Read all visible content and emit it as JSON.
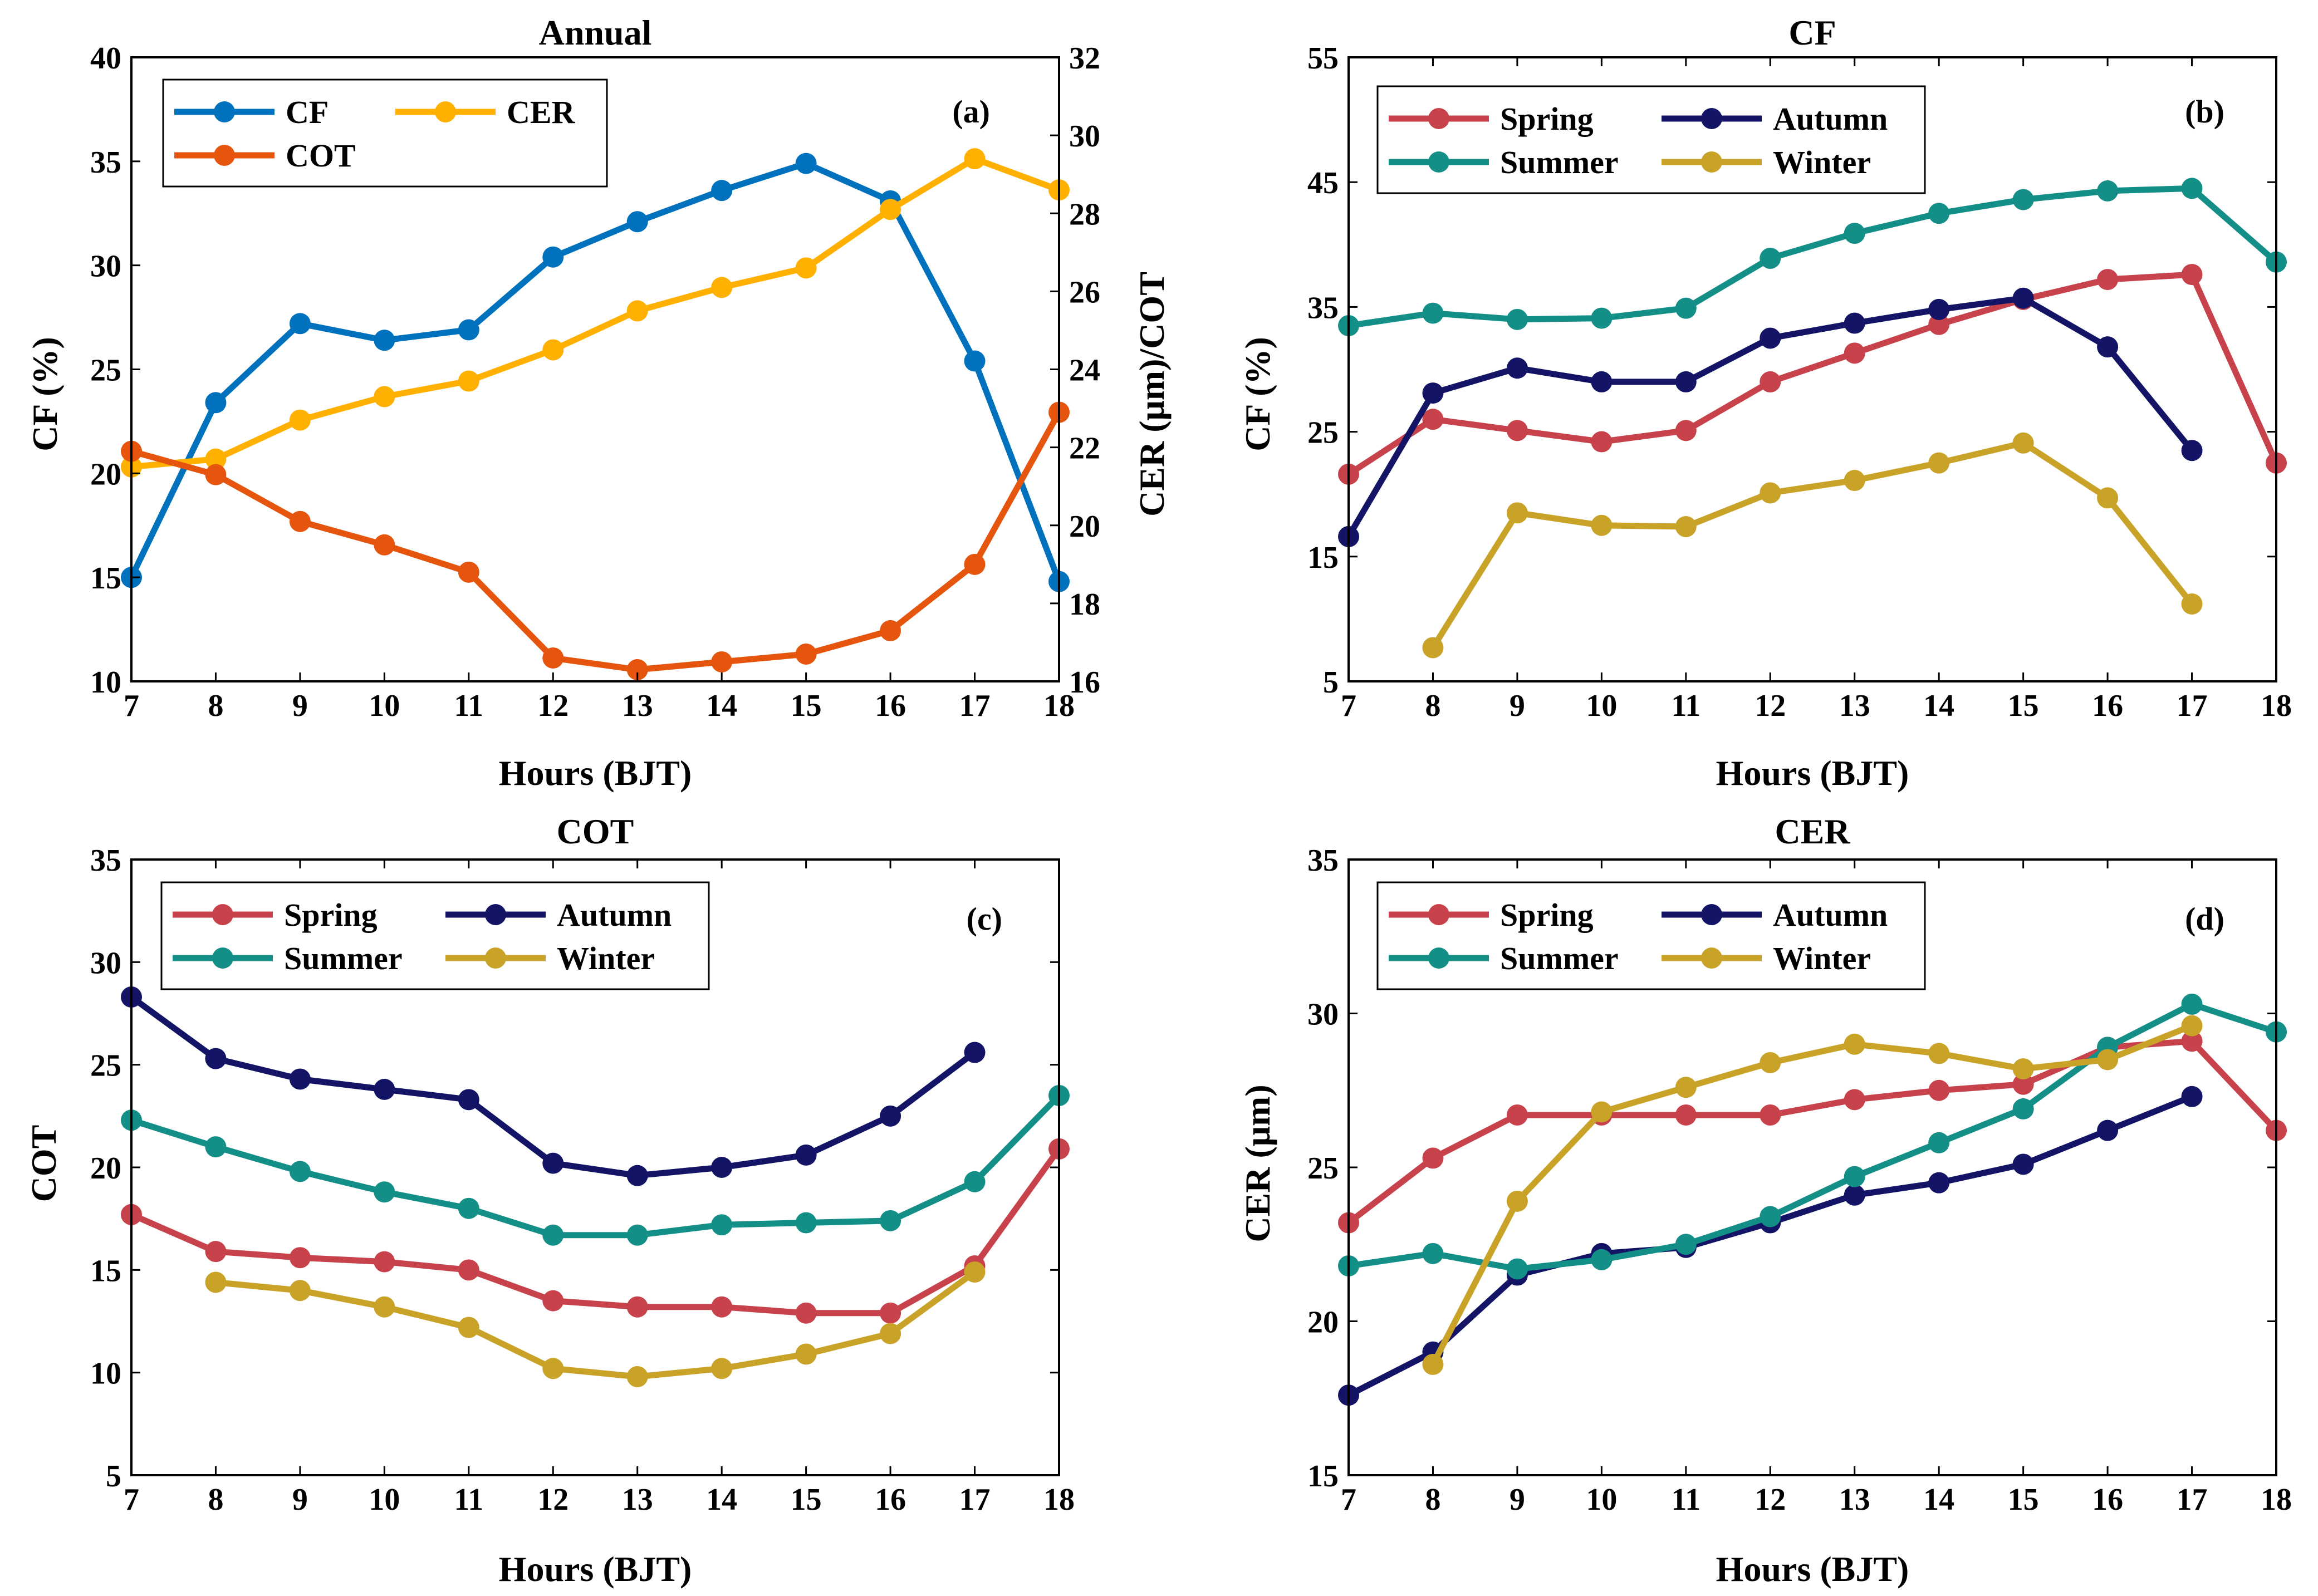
{
  "chart_data": [
    {
      "panel": "a",
      "type": "line",
      "title": "Annual",
      "annotation": "(a)",
      "xlabel": "Hours (BJT)",
      "ylabel": "CF (%)",
      "y2label": "CER (μm)/COT",
      "x": [
        7,
        8,
        9,
        10,
        11,
        12,
        13,
        14,
        15,
        16,
        17,
        18
      ],
      "xlim": [
        7,
        18
      ],
      "ylim": [
        10,
        40
      ],
      "y2lim": [
        16,
        32
      ],
      "yticks": [
        10,
        15,
        20,
        25,
        30,
        35,
        40
      ],
      "y2ticks": [
        16,
        18,
        20,
        22,
        24,
        26,
        28,
        30,
        32
      ],
      "legend_columns": 2,
      "series": [
        {
          "name": "CF",
          "axis": "left",
          "color": "#0072BD",
          "values": [
            15.0,
            23.4,
            27.2,
            26.4,
            26.9,
            30.4,
            32.1,
            33.6,
            34.9,
            33.1,
            25.4,
            14.8
          ]
        },
        {
          "name": "CER",
          "axis": "right",
          "color": "#FFB000",
          "values": [
            21.5,
            21.7,
            22.7,
            23.3,
            23.7,
            24.5,
            25.5,
            26.1,
            26.6,
            28.1,
            29.4,
            28.6
          ]
        },
        {
          "name": "COT",
          "axis": "right",
          "color": "#E6550D",
          "values": [
            21.9,
            21.3,
            20.1,
            19.5,
            18.8,
            16.6,
            16.3,
            16.5,
            16.7,
            17.3,
            19.0,
            22.9
          ]
        }
      ]
    },
    {
      "panel": "b",
      "type": "line",
      "title": "CF",
      "annotation": "(b)",
      "xlabel": "Hours (BJT)",
      "ylabel": "CF (%)",
      "x": [
        7,
        8,
        9,
        10,
        11,
        12,
        13,
        14,
        15,
        16,
        17,
        18
      ],
      "xlim": [
        7,
        18
      ],
      "ylim": [
        5,
        55
      ],
      "yticks": [
        5,
        15,
        25,
        35,
        45,
        55
      ],
      "legend_columns": 2,
      "series": [
        {
          "name": "Spring",
          "color": "#C8424B",
          "values": [
            21.6,
            26.0,
            25.1,
            24.2,
            25.1,
            29.0,
            31.3,
            33.6,
            35.6,
            37.2,
            37.6,
            22.5
          ]
        },
        {
          "name": "Autumn",
          "color": "#141466",
          "values": [
            16.6,
            28.1,
            30.1,
            29.0,
            29.0,
            32.5,
            33.7,
            34.8,
            35.7,
            31.8,
            23.5,
            null
          ]
        },
        {
          "name": "Summer",
          "color": "#138F87",
          "values": [
            33.5,
            34.5,
            34.0,
            34.1,
            34.9,
            38.9,
            40.9,
            42.5,
            43.6,
            44.3,
            44.5,
            38.6
          ]
        },
        {
          "name": "Winter",
          "color": "#C9A228",
          "values": [
            null,
            7.7,
            18.5,
            17.5,
            17.4,
            20.1,
            21.1,
            22.5,
            24.1,
            19.7,
            11.2,
            null
          ]
        }
      ]
    },
    {
      "panel": "c",
      "type": "line",
      "title": "COT",
      "annotation": "(c)",
      "xlabel": "Hours (BJT)",
      "ylabel": "COT",
      "x": [
        7,
        8,
        9,
        10,
        11,
        12,
        13,
        14,
        15,
        16,
        17,
        18
      ],
      "xlim": [
        7,
        18
      ],
      "ylim": [
        5,
        35
      ],
      "yticks": [
        5,
        10,
        15,
        20,
        25,
        30,
        35
      ],
      "legend_columns": 2,
      "series": [
        {
          "name": "Spring",
          "color": "#C8424B",
          "values": [
            17.7,
            15.9,
            15.6,
            15.4,
            15.0,
            13.5,
            13.2,
            13.2,
            12.9,
            12.9,
            15.2,
            20.9
          ]
        },
        {
          "name": "Autumn",
          "color": "#141466",
          "values": [
            28.3,
            25.3,
            24.3,
            23.8,
            23.3,
            20.2,
            19.6,
            20.0,
            20.6,
            22.5,
            25.6,
            null
          ]
        },
        {
          "name": "Summer",
          "color": "#138F87",
          "values": [
            22.3,
            21.0,
            19.8,
            18.8,
            18.0,
            16.7,
            16.7,
            17.2,
            17.3,
            17.4,
            19.3,
            23.5
          ]
        },
        {
          "name": "Winter",
          "color": "#C9A228",
          "values": [
            null,
            14.4,
            14.0,
            13.2,
            12.2,
            10.2,
            9.8,
            10.2,
            10.9,
            11.9,
            14.9,
            null
          ]
        }
      ]
    },
    {
      "panel": "d",
      "type": "line",
      "title": "CER",
      "annotation": "(d)",
      "xlabel": "Hours (BJT)",
      "ylabel": "CER (μm)",
      "x": [
        7,
        8,
        9,
        10,
        11,
        12,
        13,
        14,
        15,
        16,
        17,
        18
      ],
      "xlim": [
        7,
        18
      ],
      "ylim": [
        15,
        35
      ],
      "yticks": [
        15,
        20,
        25,
        30,
        35
      ],
      "legend_columns": 2,
      "series": [
        {
          "name": "Spring",
          "color": "#C8424B",
          "values": [
            23.2,
            25.3,
            26.7,
            26.7,
            26.7,
            26.7,
            27.2,
            27.5,
            27.7,
            28.9,
            29.1,
            26.2
          ]
        },
        {
          "name": "Autumn",
          "color": "#141466",
          "values": [
            17.6,
            19.0,
            21.5,
            22.2,
            22.4,
            23.2,
            24.1,
            24.5,
            25.1,
            26.2,
            27.3,
            null
          ]
        },
        {
          "name": "Summer",
          "color": "#138F87",
          "values": [
            21.8,
            22.2,
            21.7,
            22.0,
            22.5,
            23.4,
            24.7,
            25.8,
            26.9,
            28.9,
            30.3,
            29.4
          ]
        },
        {
          "name": "Winter",
          "color": "#C9A228",
          "values": [
            null,
            18.6,
            23.9,
            26.8,
            27.6,
            28.4,
            29.0,
            28.7,
            28.2,
            28.5,
            29.6,
            null
          ]
        }
      ]
    }
  ]
}
